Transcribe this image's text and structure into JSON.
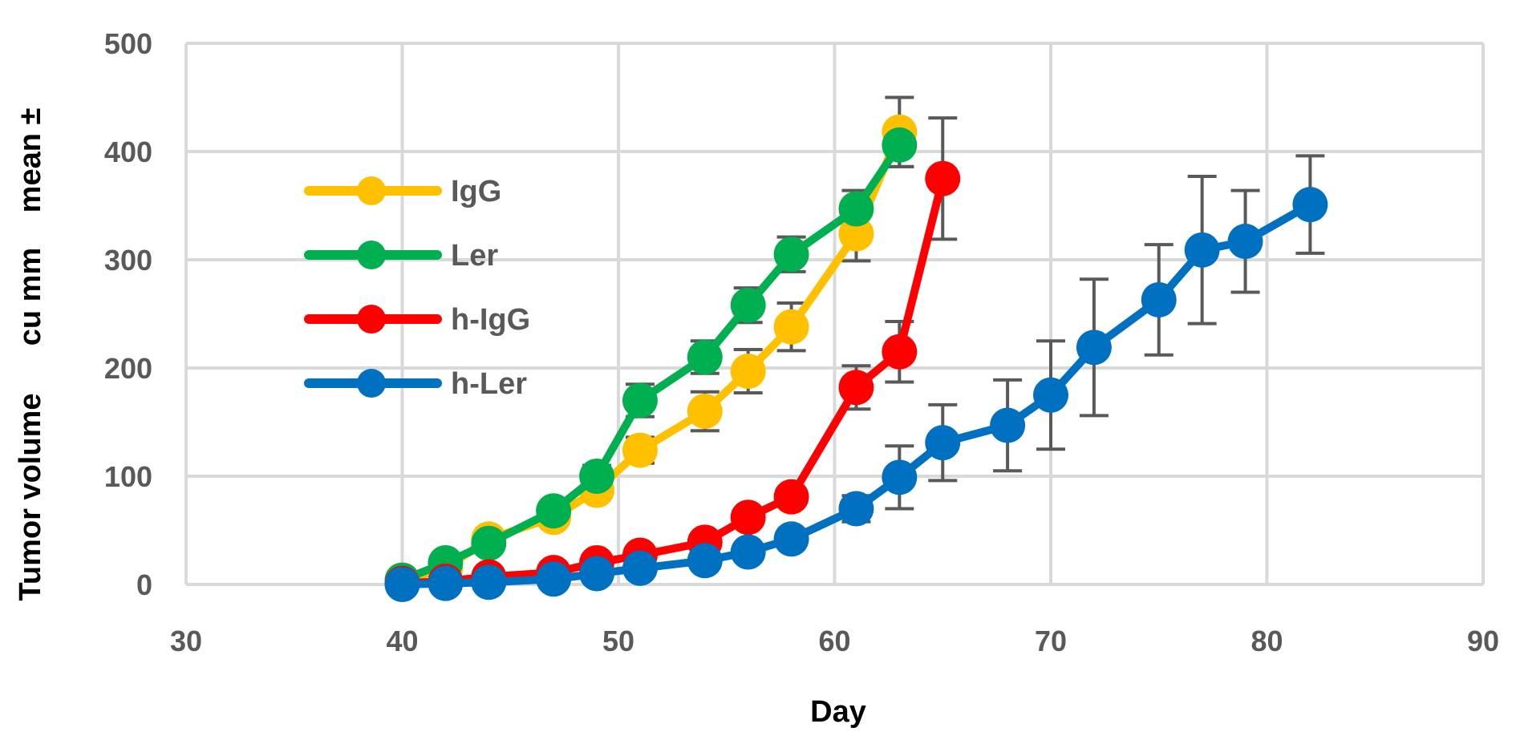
{
  "chart_data": {
    "type": "line",
    "xlabel": "Day",
    "ylabel_parts": [
      "Tumor volume",
      "cu mm",
      "mean ±"
    ],
    "xlim": [
      30,
      90
    ],
    "ylim": [
      0,
      500
    ],
    "x_ticks": [
      30,
      40,
      50,
      60,
      70,
      80,
      90
    ],
    "y_ticks": [
      0,
      100,
      200,
      300,
      400,
      500
    ],
    "x_tick_labels": [
      "30",
      "40",
      "50",
      "60",
      "70",
      "80",
      "90"
    ],
    "y_tick_labels": [
      "0",
      "100",
      "200",
      "300",
      "400",
      "500"
    ],
    "grid": true,
    "legend_position": "upper-left",
    "error_bar_color": "#595959",
    "series": [
      {
        "name": "IgG",
        "color": "#FFC000",
        "x": [
          40,
          42,
          44,
          47,
          49,
          51,
          54,
          56,
          58,
          61,
          63
        ],
        "y": [
          4,
          15,
          42,
          62,
          87,
          124,
          160,
          197,
          238,
          324,
          418
        ],
        "err": [
          0,
          0,
          0,
          0,
          0,
          12,
          18,
          20,
          22,
          25,
          32
        ]
      },
      {
        "name": "Ler",
        "color": "#00B050",
        "x": [
          40,
          42,
          44,
          47,
          49,
          51,
          54,
          56,
          58,
          61,
          63
        ],
        "y": [
          4,
          20,
          38,
          68,
          100,
          170,
          210,
          258,
          305,
          347,
          406
        ],
        "err": [
          0,
          0,
          0,
          0,
          10,
          15,
          15,
          16,
          16,
          17,
          20
        ]
      },
      {
        "name": "h-IgG",
        "color": "#FF0000",
        "x": [
          40,
          42,
          44,
          47,
          49,
          51,
          54,
          56,
          58,
          61,
          63,
          65
        ],
        "y": [
          1,
          3,
          7,
          11,
          20,
          27,
          39,
          62,
          81,
          182,
          215,
          375
        ],
        "err": [
          0,
          0,
          0,
          0,
          0,
          0,
          0,
          0,
          0,
          20,
          28,
          56
        ]
      },
      {
        "name": "h-Ler",
        "color": "#0070C0",
        "x": [
          40,
          42,
          44,
          47,
          49,
          51,
          54,
          56,
          58,
          61,
          63,
          65,
          68,
          70,
          72,
          75,
          77,
          79,
          82
        ],
        "y": [
          0,
          1,
          2,
          5,
          10,
          15,
          22,
          30,
          42,
          70,
          99,
          131,
          147,
          175,
          219,
          263,
          309,
          317,
          351
        ],
        "err": [
          0,
          0,
          0,
          0,
          0,
          0,
          0,
          0,
          0,
          12,
          29,
          35,
          42,
          50,
          63,
          51,
          68,
          47,
          45
        ]
      }
    ]
  }
}
